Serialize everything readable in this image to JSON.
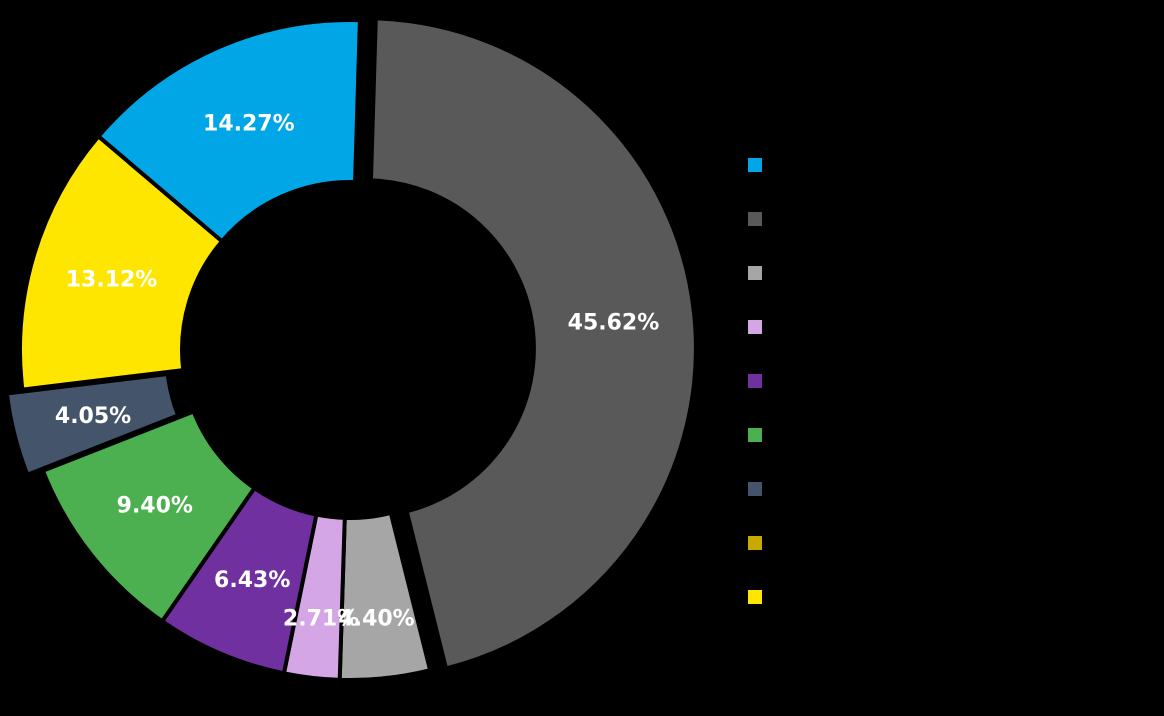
{
  "chart_data": {
    "type": "pie",
    "variant": "donut",
    "legend_title": "",
    "legend_position": "right",
    "slices": [
      {
        "label": "",
        "value": 45.62,
        "display": "45.62%",
        "color": "#595959",
        "exploded": true
      },
      {
        "label": "",
        "value": 4.4,
        "display": "4.40%",
        "color": "#a6a6a6",
        "exploded": false
      },
      {
        "label": "",
        "value": 2.71,
        "display": "2.71%",
        "color": "#d5a6e6",
        "exploded": false
      },
      {
        "label": "",
        "value": 6.43,
        "display": "6.43%",
        "color": "#7030a0",
        "exploded": false
      },
      {
        "label": "",
        "value": 9.4,
        "display": "9.40%",
        "color": "#4caf50",
        "exploded": false
      },
      {
        "label": "",
        "value": 4.05,
        "display": "4.05%",
        "color": "#44546a",
        "exploded": true
      },
      {
        "label": "",
        "value": 0.0,
        "display": "",
        "color": "#c9a800",
        "exploded": false
      },
      {
        "label": "",
        "value": 13.12,
        "display": "13.12%",
        "color": "#ffe600",
        "exploded": false
      },
      {
        "label": "",
        "value": 14.27,
        "display": "14.27%",
        "color": "#00a6e6",
        "exploded": false
      }
    ],
    "legend": [
      {
        "label": "",
        "color": "#00a6e6"
      },
      {
        "label": "",
        "color": "#595959"
      },
      {
        "label": "",
        "color": "#a6a6a6"
      },
      {
        "label": "",
        "color": "#d5a6e6"
      },
      {
        "label": "",
        "color": "#7030a0"
      },
      {
        "label": "",
        "color": "#4caf50"
      },
      {
        "label": "",
        "color": "#44546a"
      },
      {
        "label": "",
        "color": "#c9a800"
      },
      {
        "label": "",
        "color": "#ffe600"
      }
    ]
  }
}
